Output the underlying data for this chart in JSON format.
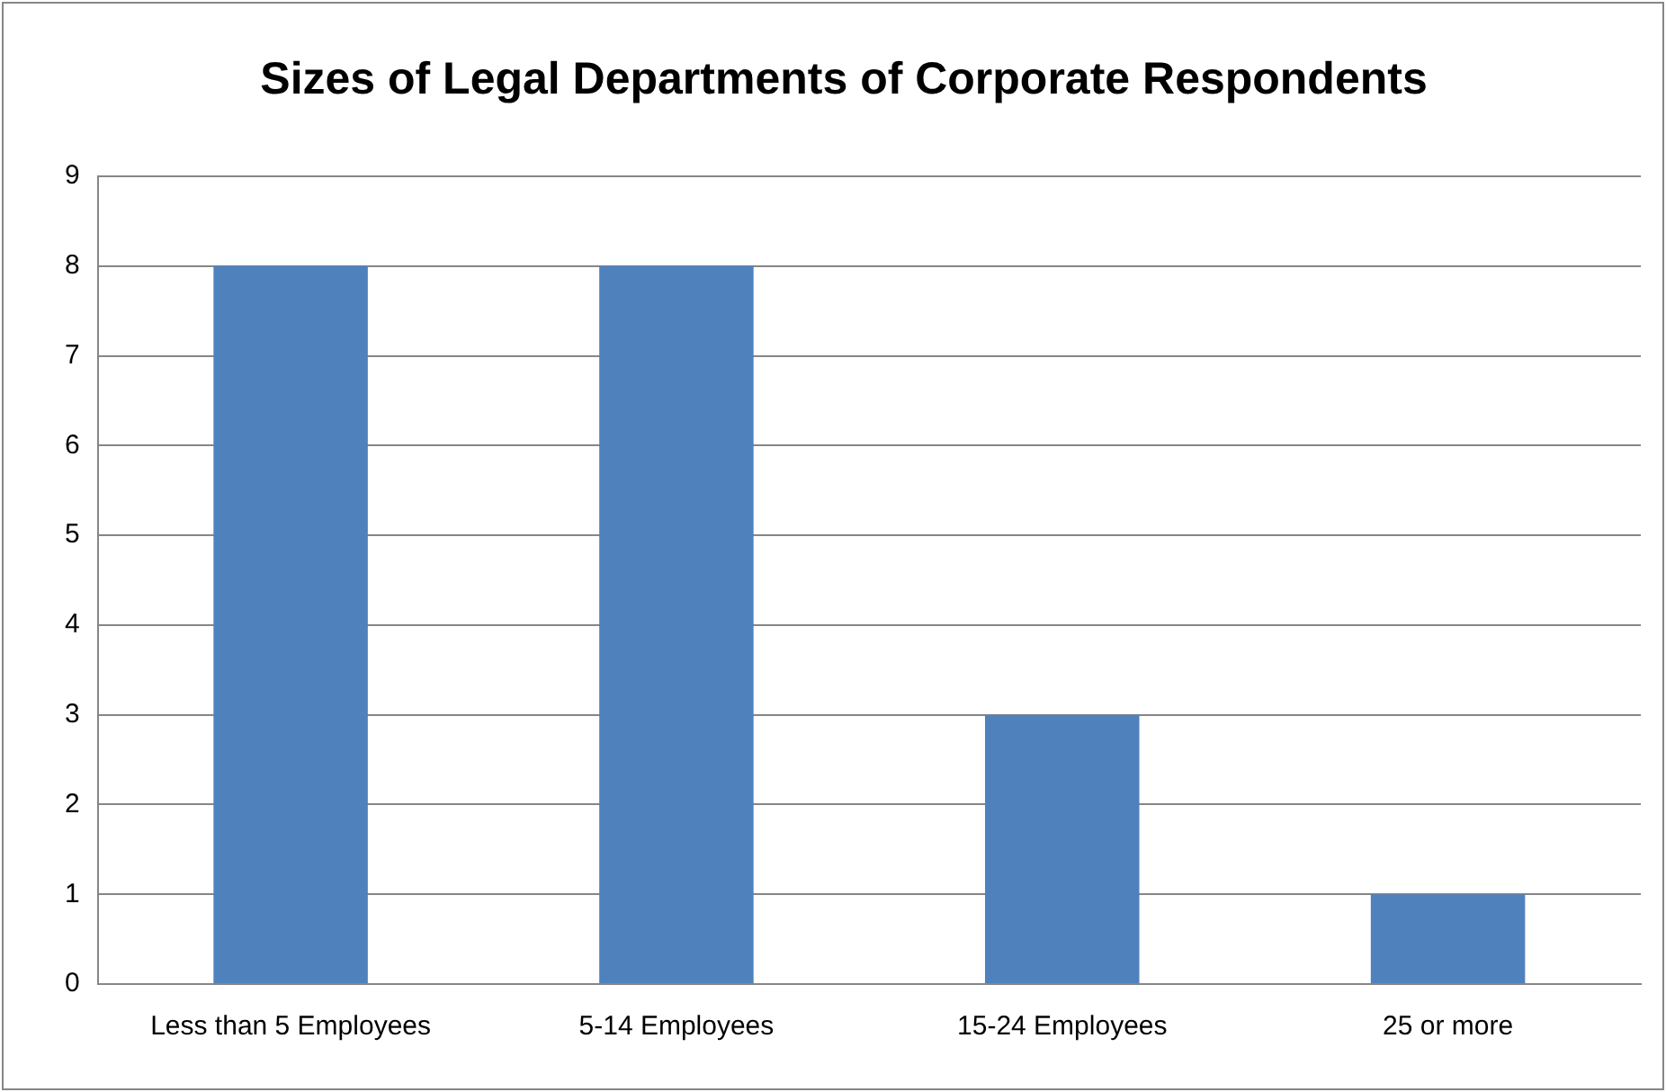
{
  "chart_data": {
    "type": "bar",
    "title": "Sizes of Legal Departments of Corporate Respondents",
    "categories": [
      "Less than 5 Employees",
      "5-14 Employees",
      "15-24 Employees",
      "25 or more"
    ],
    "values": [
      8,
      8,
      3,
      1
    ],
    "color": "#4f81bd",
    "ylim": [
      0,
      9
    ],
    "yticks": [
      0,
      1,
      2,
      3,
      4,
      5,
      6,
      7,
      8,
      9
    ],
    "grid": "y",
    "legend": false
  }
}
